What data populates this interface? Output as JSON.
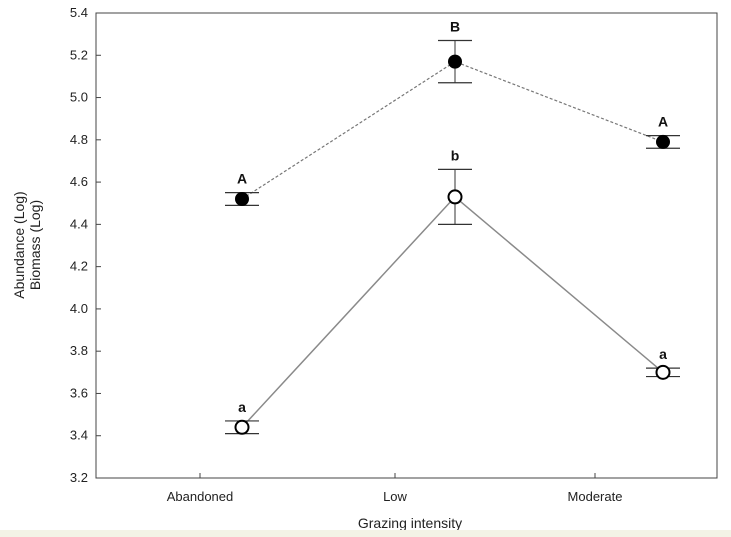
{
  "chart_data": {
    "type": "line",
    "xlabel": "Grazing intensity",
    "ylabel_lines": [
      "Abundance (Log)",
      "Biomass (Log)"
    ],
    "categories": [
      "Abandoned",
      "Low",
      "Moderate"
    ],
    "ylim": [
      3.2,
      5.4
    ],
    "yticks": [
      "3.2",
      "3.4",
      "3.6",
      "3.8",
      "4.0",
      "4.2",
      "4.4",
      "4.6",
      "4.8",
      "5.0",
      "5.2",
      "5.4"
    ],
    "grid": false,
    "series": [
      {
        "style": "filled-dotted",
        "values": [
          4.52,
          5.17,
          4.79
        ],
        "err_low": [
          4.49,
          5.07,
          4.76
        ],
        "err_high": [
          4.55,
          5.27,
          4.82
        ],
        "letters": [
          "A",
          "B",
          "A"
        ],
        "color": "#000000",
        "line_color": "#777777"
      },
      {
        "style": "open-solid",
        "values": [
          3.44,
          4.53,
          3.7
        ],
        "err_low": [
          3.41,
          4.4,
          3.68
        ],
        "err_high": [
          3.47,
          4.66,
          3.72
        ],
        "letters": [
          "a",
          "b",
          "a"
        ],
        "color": "#000000",
        "line_color": "#8a8a8a"
      }
    ]
  }
}
